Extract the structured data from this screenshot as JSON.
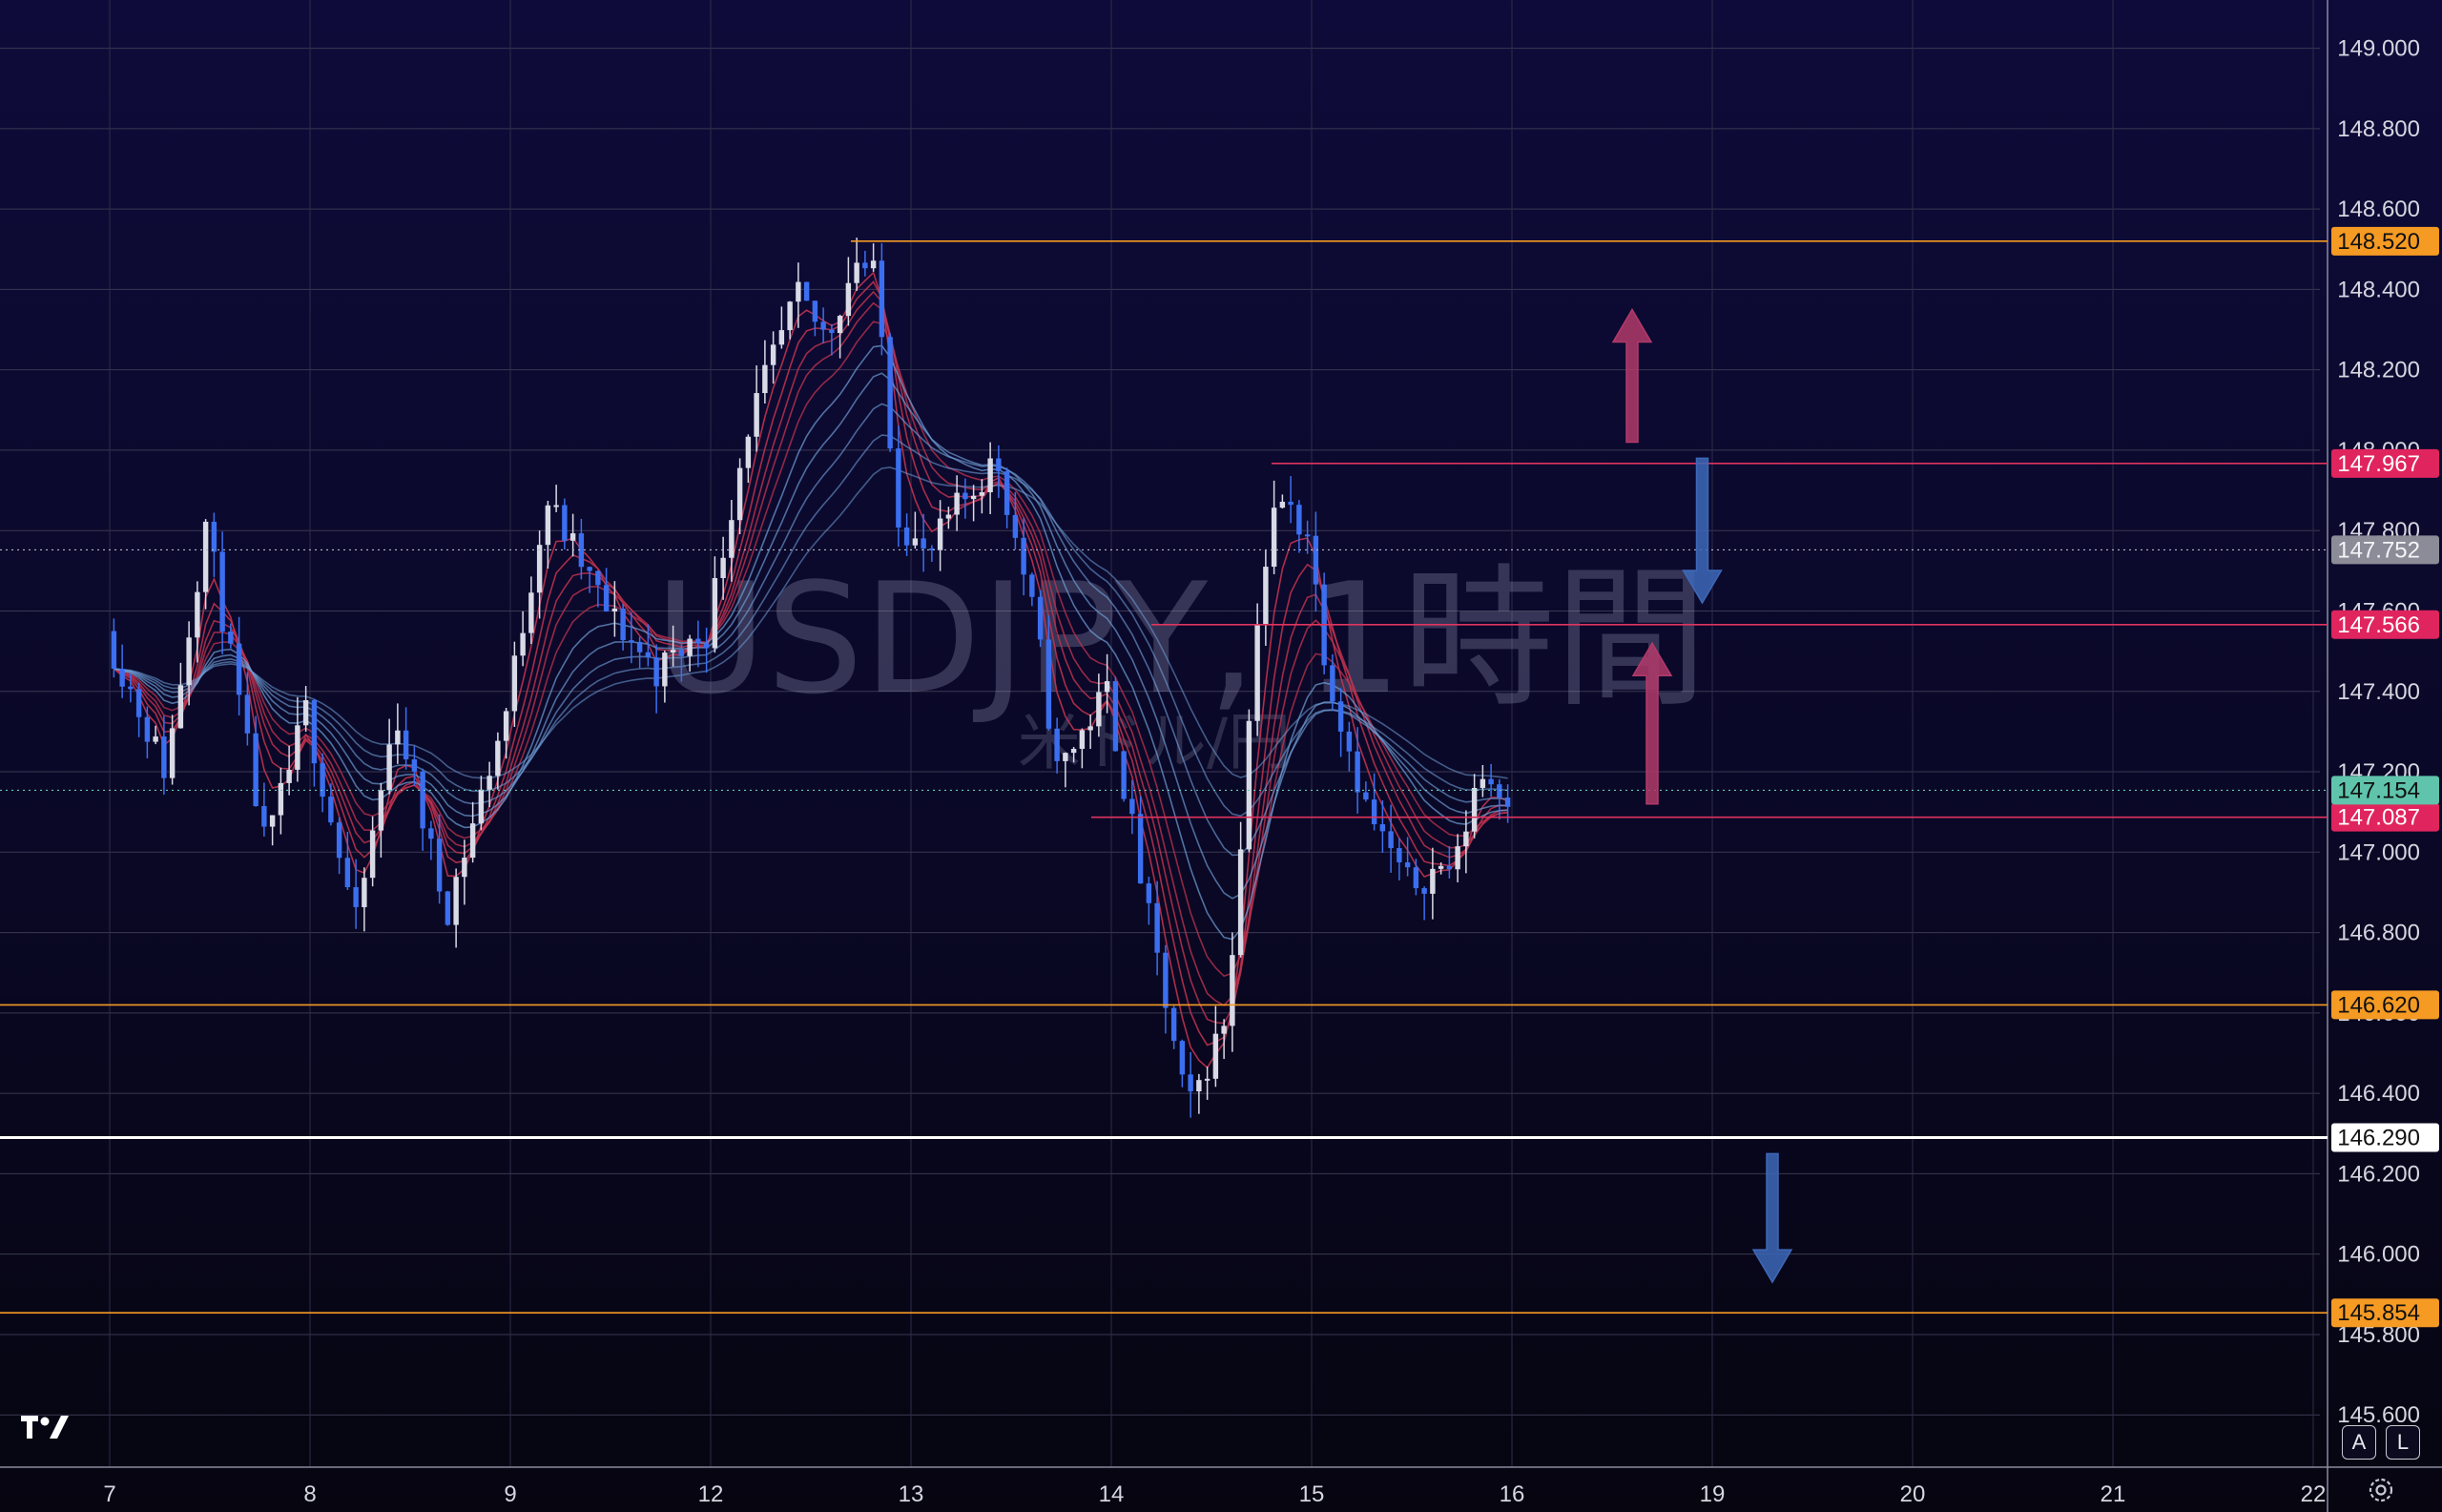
{
  "watermark": {
    "symbol": "USDJPY, 1時間",
    "description": "米ドル/円"
  },
  "chart_data": {
    "type": "candlestick",
    "symbol": "USDJPY",
    "timeframe": "1時間",
    "y_range": [
      145.47,
      149.12
    ],
    "y_ticks": [
      "149.000",
      "148.800",
      "148.600",
      "148.400",
      "148.200",
      "148.000",
      "147.800",
      "147.600",
      "147.400",
      "147.200",
      "147.000",
      "146.800",
      "146.600",
      "146.400",
      "146.200",
      "146.000",
      "145.800",
      "145.600"
    ],
    "x_ticks": [
      "7",
      "8",
      "9",
      "12",
      "13",
      "14",
      "15",
      "16",
      "19",
      "20",
      "21",
      "22"
    ],
    "current_price": "147.154",
    "crosshair_price": "147.752",
    "price_path": [
      {
        "t": 0,
        "p": 147.55
      },
      {
        "t": 0.3,
        "p": 147.2
      },
      {
        "t": 0.5,
        "p": 147.82
      },
      {
        "t": 0.8,
        "p": 147.0
      },
      {
        "t": 1.0,
        "p": 147.35
      },
      {
        "t": 1.25,
        "p": 146.82
      },
      {
        "t": 1.45,
        "p": 147.35
      },
      {
        "t": 1.7,
        "p": 146.85
      },
      {
        "t": 2.0,
        "p": 147.35
      },
      {
        "t": 2.2,
        "p": 147.88
      },
      {
        "t": 2.5,
        "p": 147.6
      },
      {
        "t": 2.75,
        "p": 147.45
      },
      {
        "t": 3.0,
        "p": 147.55
      },
      {
        "t": 3.2,
        "p": 148.05
      },
      {
        "t": 3.45,
        "p": 148.38
      },
      {
        "t": 3.6,
        "p": 148.28
      },
      {
        "t": 3.75,
        "p": 148.48
      },
      {
        "t": 3.85,
        "p": 148.42
      },
      {
        "t": 3.95,
        "p": 147.85
      },
      {
        "t": 4.1,
        "p": 147.72
      },
      {
        "t": 4.2,
        "p": 147.82
      },
      {
        "t": 4.45,
        "p": 147.98
      },
      {
        "t": 4.65,
        "p": 147.55
      },
      {
        "t": 4.75,
        "p": 147.2
      },
      {
        "t": 5.0,
        "p": 147.4
      },
      {
        "t": 5.2,
        "p": 146.85
      },
      {
        "t": 5.4,
        "p": 146.35
      },
      {
        "t": 5.6,
        "p": 146.6
      },
      {
        "t": 5.75,
        "p": 147.6
      },
      {
        "t": 5.85,
        "p": 147.88
      },
      {
        "t": 6.0,
        "p": 147.8
      },
      {
        "t": 6.1,
        "p": 147.45
      },
      {
        "t": 6.3,
        "p": 147.1
      },
      {
        "t": 6.5,
        "p": 146.92
      },
      {
        "t": 6.75,
        "p": 146.98
      },
      {
        "t": 6.85,
        "p": 147.2
      },
      {
        "t": 7.0,
        "p": 147.15
      }
    ],
    "price_lines": [
      {
        "label": "148.520",
        "value": 148.52,
        "color": "#f59a23",
        "bg": "#f59a23",
        "fg": "#111111",
        "start_t": 3.7
      },
      {
        "label": "147.967",
        "value": 147.967,
        "color": "#e0335e",
        "bg": "#e0245e",
        "fg": "#ffffff",
        "start_t": 5.8
      },
      {
        "label": "147.566",
        "value": 147.566,
        "color": "#e0335e",
        "bg": "#e0245e",
        "fg": "#ffffff",
        "start_t": 5.2
      },
      {
        "label": "147.087",
        "value": 147.087,
        "color": "#e0335e",
        "bg": "#e0245e",
        "fg": "#ffffff",
        "start_t": 4.9
      },
      {
        "label": "146.620",
        "value": 146.62,
        "color": "#f59a23",
        "bg": "#f59a23",
        "fg": "#111111",
        "start_t": -1
      },
      {
        "label": "146.290",
        "value": 146.29,
        "color": "#ffffff",
        "bg": "#ffffff",
        "fg": "#111111",
        "start_t": -1
      },
      {
        "label": "145.854",
        "value": 145.854,
        "color": "#f59a23",
        "bg": "#f59a23",
        "fg": "#111111",
        "start_t": -1
      }
    ],
    "arrows": [
      {
        "direction": "up",
        "color": "#b23a6a",
        "t": 7.6,
        "from": 148.02,
        "to": 148.35
      },
      {
        "direction": "down",
        "color": "#3d68b8",
        "t": 7.95,
        "from": 147.98,
        "to": 147.62
      },
      {
        "direction": "up",
        "color": "#b23a6a",
        "t": 7.7,
        "from": 147.12,
        "to": 147.52
      },
      {
        "direction": "down",
        "color": "#3d68b8",
        "t": 8.3,
        "from": 146.25,
        "to": 145.93
      }
    ],
    "colors": {
      "up_candle": "#d8dae6",
      "down_candle": "#3b6ff0",
      "ma_red": "#c0334f",
      "ma_blue": "#6fa0d8"
    },
    "grid": true
  },
  "controls": {
    "auto_label": "A",
    "log_label": "L"
  },
  "icons": {
    "logo": "tradingview-logo-icon",
    "settings": "gear-icon"
  }
}
